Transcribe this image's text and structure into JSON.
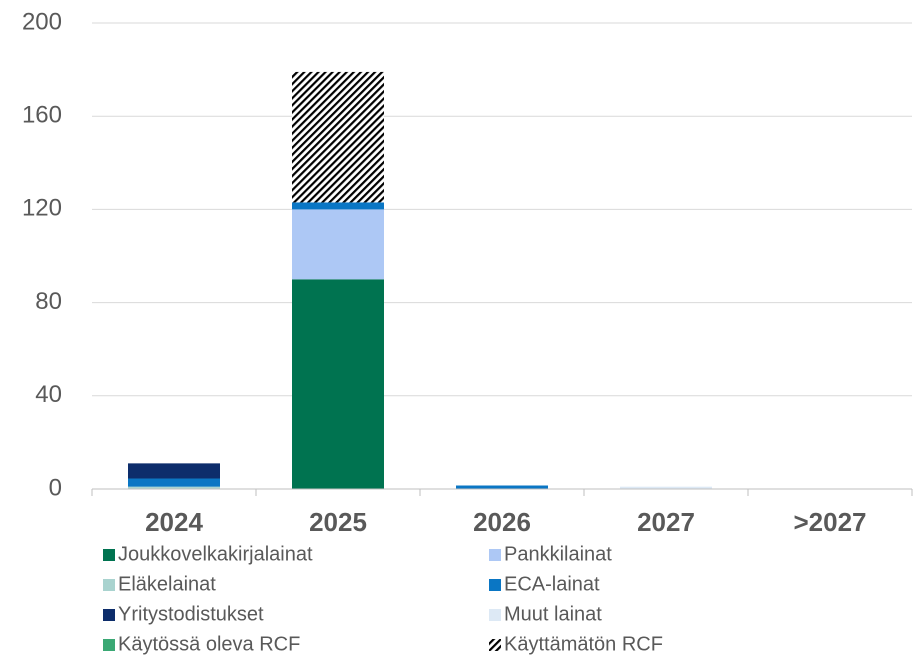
{
  "chart_data": {
    "type": "bar",
    "stacked": true,
    "categories": [
      "2024",
      "2025",
      "2026",
      "2027",
      ">2027"
    ],
    "series": [
      {
        "name": "Joukkovelkakirjalainat",
        "color": "#007350",
        "values": [
          0,
          90,
          0,
          0,
          0
        ]
      },
      {
        "name": "Pankkilainat",
        "color": "#adc8f5",
        "values": [
          0,
          30,
          0,
          0,
          0
        ]
      },
      {
        "name": "Eläkelainat",
        "color": "#a9d3cf",
        "values": [
          1,
          0,
          0,
          0,
          0
        ]
      },
      {
        "name": "ECA-lainat",
        "color": "#0a76c4",
        "values": [
          3.5,
          3,
          1.5,
          0,
          0
        ]
      },
      {
        "name": "Yritystodistukset",
        "color": "#0d2d6b",
        "values": [
          6.5,
          0,
          0,
          0,
          0
        ]
      },
      {
        "name": "Muut lainat",
        "color": "#dde9f5",
        "values": [
          0,
          0,
          0,
          1,
          0
        ]
      },
      {
        "name": "Käytössä oleva RCF",
        "color": "#3aa874",
        "values": [
          0,
          0,
          0,
          0,
          0
        ]
      },
      {
        "name": "Käyttämätön RCF",
        "color": "#000000",
        "hatch": true,
        "values": [
          0,
          56,
          0,
          0,
          0
        ]
      }
    ],
    "ylim": [
      0,
      200
    ],
    "yticks": [
      0,
      40,
      80,
      120,
      160,
      200
    ],
    "grid": true
  }
}
